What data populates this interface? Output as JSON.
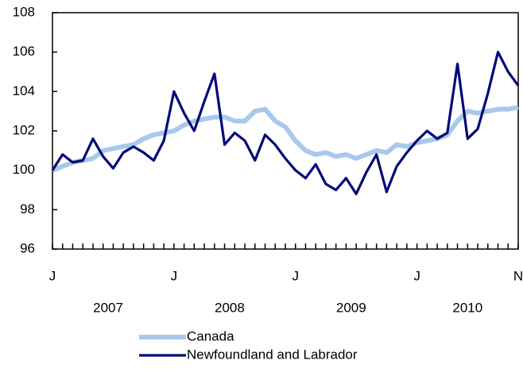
{
  "chart_data": {
    "type": "line",
    "categories": [
      "J",
      null,
      null,
      null,
      null,
      null,
      null,
      null,
      null,
      null,
      null,
      null,
      "J",
      null,
      null,
      null,
      null,
      null,
      null,
      null,
      null,
      null,
      null,
      null,
      "J",
      null,
      null,
      null,
      null,
      null,
      null,
      null,
      null,
      null,
      null,
      null,
      "J",
      null,
      null,
      null,
      null,
      null,
      null,
      null,
      null,
      null,
      "N"
    ],
    "year_labels": [
      "2007",
      "2008",
      "2009",
      "2010"
    ],
    "series": [
      {
        "name": "Canada",
        "color": "#a8c8ec",
        "values": [
          100,
          100.2,
          100.4,
          100.5,
          100.6,
          101.0,
          101.1,
          101.2,
          101.3,
          101.6,
          101.8,
          101.9,
          102.0,
          102.3,
          102.5,
          102.6,
          102.7,
          102.7,
          102.5,
          102.5,
          103.0,
          103.1,
          102.5,
          102.2,
          101.5,
          101.0,
          100.8,
          100.9,
          100.7,
          100.8,
          100.6,
          100.8,
          101.0,
          100.9,
          101.3,
          101.2,
          101.4,
          101.5,
          101.6,
          101.8,
          102.5,
          103.0,
          102.9,
          103.0,
          103.1,
          103.1,
          103.2
        ]
      },
      {
        "name": "Newfoundland and Labrador",
        "color": "#000a78",
        "values": [
          100,
          100.8,
          100.4,
          100.5,
          101.6,
          100.7,
          100.1,
          100.9,
          101.2,
          100.9,
          100.5,
          101.5,
          104.0,
          102.9,
          102.0,
          103.5,
          104.9,
          101.3,
          101.9,
          101.5,
          100.5,
          101.8,
          101.3,
          100.6,
          100.0,
          99.6,
          100.3,
          99.3,
          99.0,
          99.6,
          98.8,
          99.9,
          100.8,
          98.9,
          100.2,
          100.9,
          101.5,
          102.0,
          101.6,
          101.9,
          105.4,
          101.6,
          102.1,
          103.9,
          106.0,
          105.0,
          104.3
        ]
      }
    ],
    "ylim": [
      96,
      108
    ],
    "yticks": [
      96,
      98,
      100,
      102,
      104,
      106,
      108
    ],
    "grid": false
  }
}
